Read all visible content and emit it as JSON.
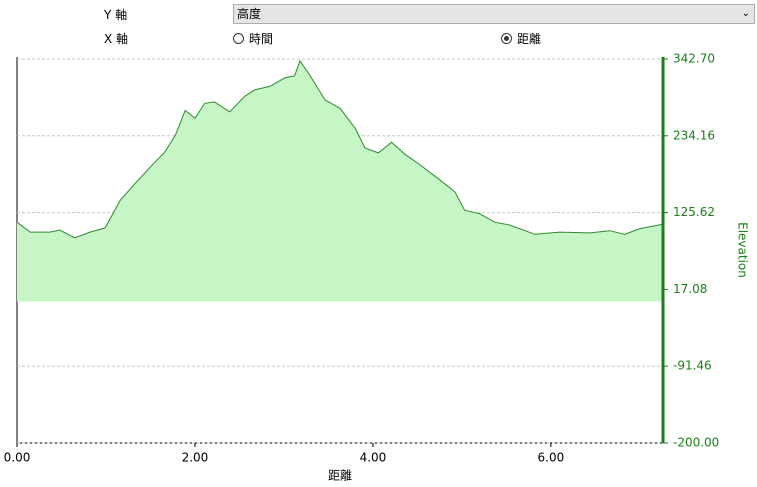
{
  "controls": {
    "y_axis_label": "Y 軸",
    "y_axis_value": "高度",
    "x_axis_label": "X 軸",
    "x_options": [
      "時間",
      "距離"
    ]
  },
  "chart_data": {
    "type": "area",
    "xlabel": "距離",
    "ylabel": "Elevation",
    "color": "#2e8b2e",
    "fill": "#c6f5c6",
    "axis_color": "#1a7f1a",
    "x": [
      0,
      0.15,
      0.37,
      0.48,
      0.65,
      0.82,
      0.99,
      1.16,
      1.33,
      1.49,
      1.66,
      1.78,
      1.89,
      2.0,
      2.11,
      2.22,
      2.39,
      2.56,
      2.67,
      2.84,
      3.01,
      3.12,
      3.18,
      3.29,
      3.46,
      3.63,
      3.8,
      3.91,
      4.06,
      4.21,
      4.36,
      4.53,
      4.75,
      4.92,
      5.03,
      5.2,
      5.37,
      5.54,
      5.82,
      6.1,
      6.44,
      6.66,
      6.83,
      7.0,
      7.25
    ],
    "values": [
      112,
      98,
      98,
      101,
      90,
      98,
      104,
      143,
      167,
      189,
      211,
      235,
      270,
      259,
      280,
      282,
      268,
      290,
      299,
      304,
      316,
      319,
      340,
      320,
      285,
      273,
      245,
      217,
      210,
      225,
      208,
      193,
      172,
      155,
      129,
      124,
      112,
      108,
      95,
      98,
      97,
      100,
      95,
      103,
      109
    ],
    "xlim": [
      0,
      7.26
    ],
    "ylim": [
      -200,
      342.7
    ],
    "xticks": [
      {
        "value": 0,
        "label": "0.00"
      },
      {
        "value": 2,
        "label": "2.00"
      },
      {
        "value": 4,
        "label": "4.00"
      },
      {
        "value": 6,
        "label": "6.00"
      }
    ],
    "yticks": [
      {
        "value": -200,
        "label": "-200.00"
      },
      {
        "value": -91.46,
        "label": "-91.46"
      },
      {
        "value": 17.08,
        "label": "17.08"
      },
      {
        "value": 125.62,
        "label": "125.62"
      },
      {
        "value": 234.16,
        "label": "234.16"
      },
      {
        "value": 342.7,
        "label": "342.70"
      }
    ],
    "grid": true
  }
}
